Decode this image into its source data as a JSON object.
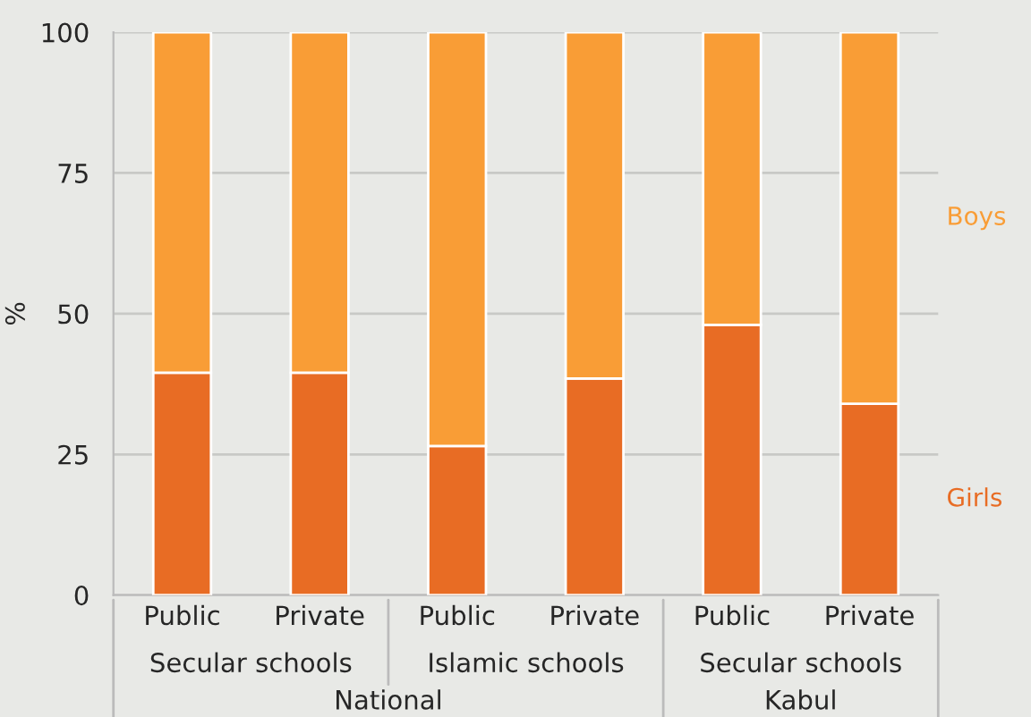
{
  "chart_data": {
    "type": "bar",
    "stacked": true,
    "ylabel": "%",
    "categories": [
      "Public",
      "Private",
      "Public",
      "Private",
      "Public",
      "Private"
    ],
    "series": [
      {
        "name": "Girls",
        "color": "#e86c24",
        "values": [
          39.5,
          39.5,
          26.5,
          38.5,
          48,
          34
        ]
      },
      {
        "name": "Boys",
        "color": "#f99d36",
        "values": [
          60.5,
          60.5,
          73.5,
          61.5,
          52,
          66
        ]
      }
    ],
    "ylim": [
      0,
      100
    ],
    "yticks": [
      0,
      25,
      50,
      75,
      100
    ],
    "grid": "y",
    "annotations": [
      "Secular schools",
      "Islamic schools",
      "Secular schools",
      "National",
      "Kabul"
    ]
  }
}
